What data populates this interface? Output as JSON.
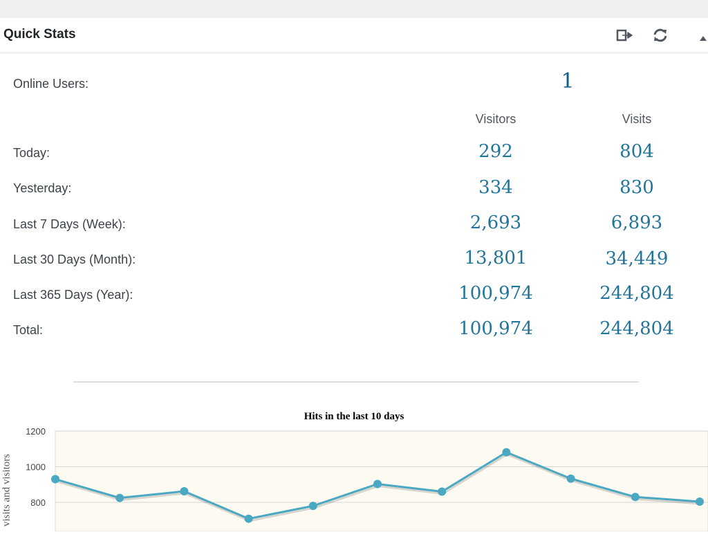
{
  "widget": {
    "title": "Quick Stats",
    "icons": [
      "export-icon",
      "refresh-icon",
      "collapse-arrow-icon"
    ]
  },
  "online": {
    "label": "Online Users:",
    "value": "1"
  },
  "columns": {
    "visitors": "Visitors",
    "visits": "Visits"
  },
  "rows": [
    {
      "label": "Today:",
      "visitors": "292",
      "visits": "804"
    },
    {
      "label": "Yesterday:",
      "visitors": "334",
      "visits": "830"
    },
    {
      "label": "Last 7 Days (Week):",
      "visitors": "2,693",
      "visits": "6,893"
    },
    {
      "label": "Last 30 Days (Month):",
      "visitors": "13,801",
      "visits": "34,449"
    },
    {
      "label": "Last 365 Days (Year):",
      "visitors": "100,974",
      "visits": "244,804"
    },
    {
      "label": "Total:",
      "visitors": "100,974",
      "visits": "244,804"
    }
  ],
  "colors": {
    "accent": "#21759b",
    "line": "#4aa8c2",
    "plot_bg": "#fdfbf1"
  },
  "chart_data": {
    "type": "line",
    "title": "Hits in the last 10 days",
    "ylabel": "visits and visitors",
    "xlabel": "",
    "ylim": [
      700,
      1200
    ],
    "yticks": [
      1200,
      1000,
      800
    ],
    "grid": true,
    "series": [
      {
        "values": [
          930,
          825,
          862,
          708,
          780,
          903,
          860,
          1081,
          933,
          830,
          804
        ]
      }
    ]
  }
}
